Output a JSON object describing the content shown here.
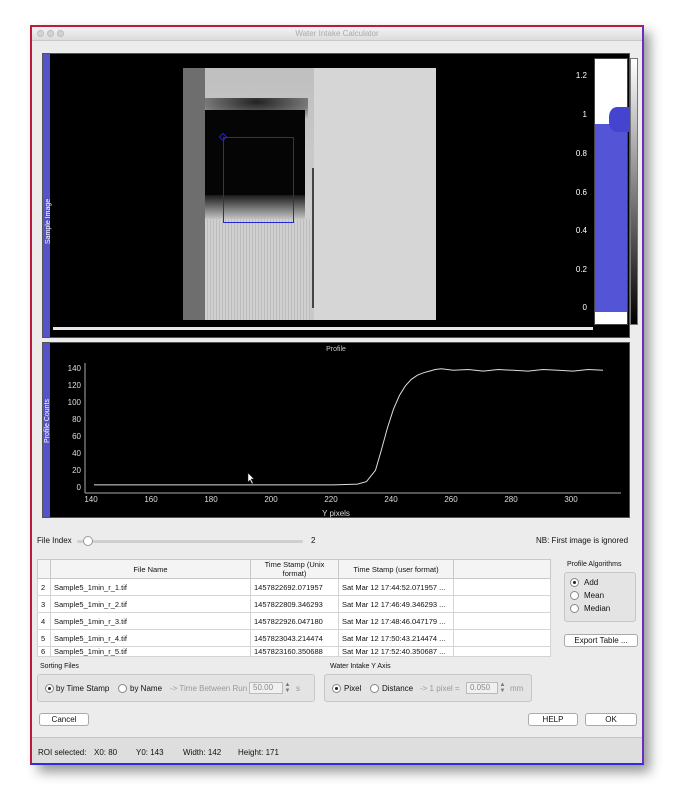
{
  "window": {
    "title": "Water Intake Calculator"
  },
  "sample_panel": {
    "label": "Sample Image",
    "histogram_ticks": [
      "1.2",
      "1",
      "0.8",
      "0.6",
      "0.4",
      "0.2",
      "0"
    ]
  },
  "profile_panel": {
    "title": "Profile",
    "ylabel": "Profile Counts",
    "xlabel": "Y pixels",
    "yticks": [
      "140",
      "120",
      "100",
      "80",
      "60",
      "40",
      "20",
      "0"
    ],
    "xticks": [
      "140",
      "160",
      "180",
      "200",
      "220",
      "240",
      "260",
      "280",
      "300"
    ]
  },
  "chart_data": {
    "type": "line",
    "title": "Profile",
    "xlabel": "Y pixels",
    "ylabel": "Profile Counts",
    "xlim": [
      137,
      316
    ],
    "ylim": [
      -8,
      152
    ],
    "grid": false,
    "series": [
      {
        "x": [
          140,
          160,
          180,
          200,
          220,
          228,
          231,
          234,
          236,
          238,
          240,
          242,
          244,
          246,
          248,
          250,
          252,
          254,
          256,
          260,
          265,
          270,
          275,
          280,
          285,
          290,
          295,
          300,
          305,
          310
        ],
        "values": [
          2,
          2,
          2,
          2,
          2,
          3,
          6,
          20,
          45,
          72,
          95,
          112,
          124,
          132,
          137,
          140,
          142,
          144,
          145,
          143,
          144,
          142,
          144,
          143,
          142,
          144,
          143,
          142,
          144,
          143
        ]
      }
    ]
  },
  "file_index": {
    "label": "File Index",
    "value": "2",
    "position": 0.05
  },
  "note": "NB: First image is ignored",
  "table": {
    "headers": [
      "",
      "File Name",
      "Time Stamp (Unix format)",
      "Time Stamp (user format)"
    ],
    "rows": [
      [
        "2",
        "Sample5_1min_r_1.tif",
        "1457822692.071957",
        "Sat Mar 12 17:44:52.071957 ..."
      ],
      [
        "3",
        "Sample5_1min_r_2.tif",
        "1457822809.346293",
        "Sat Mar 12 17:46:49.346293 ..."
      ],
      [
        "4",
        "Sample5_1min_r_3.tif",
        "1457822926.047180",
        "Sat Mar 12 17:48:46.047179 ..."
      ],
      [
        "5",
        "Sample5_1min_r_4.tif",
        "1457823043.214474",
        "Sat Mar 12 17:50:43.214474 ..."
      ],
      [
        "6",
        "Sample5_1min_r_5.tif",
        "1457823160.350688",
        "Sat Mar 12 17:52:40.350687 ..."
      ]
    ]
  },
  "profile_algorithms": {
    "title": "Profile Algorithms",
    "options": [
      "Add",
      "Mean",
      "Median"
    ],
    "selected": "Add"
  },
  "export_button": "Export Table ...",
  "sorting": {
    "title": "Sorting Files",
    "by_time_stamp": "by Time Stamp",
    "by_name": "by Name",
    "time_between_label": "-> Time Between Run",
    "time_between_value": "50.00",
    "unit": "s"
  },
  "y_axis": {
    "title": "Water Intake Y Axis",
    "pixel": "Pixel",
    "distance": "Distance",
    "pixel_label": "-> 1 pixel =",
    "pixel_value": "0.050",
    "unit": "mm"
  },
  "buttons": {
    "cancel": "Cancel",
    "help": "HELP",
    "ok": "OK"
  },
  "status": {
    "roi_label": "ROI selected:",
    "x0": "X0:  80",
    "y0": "Y0:  143",
    "width": "Width:  142",
    "height": "Height:  171"
  }
}
